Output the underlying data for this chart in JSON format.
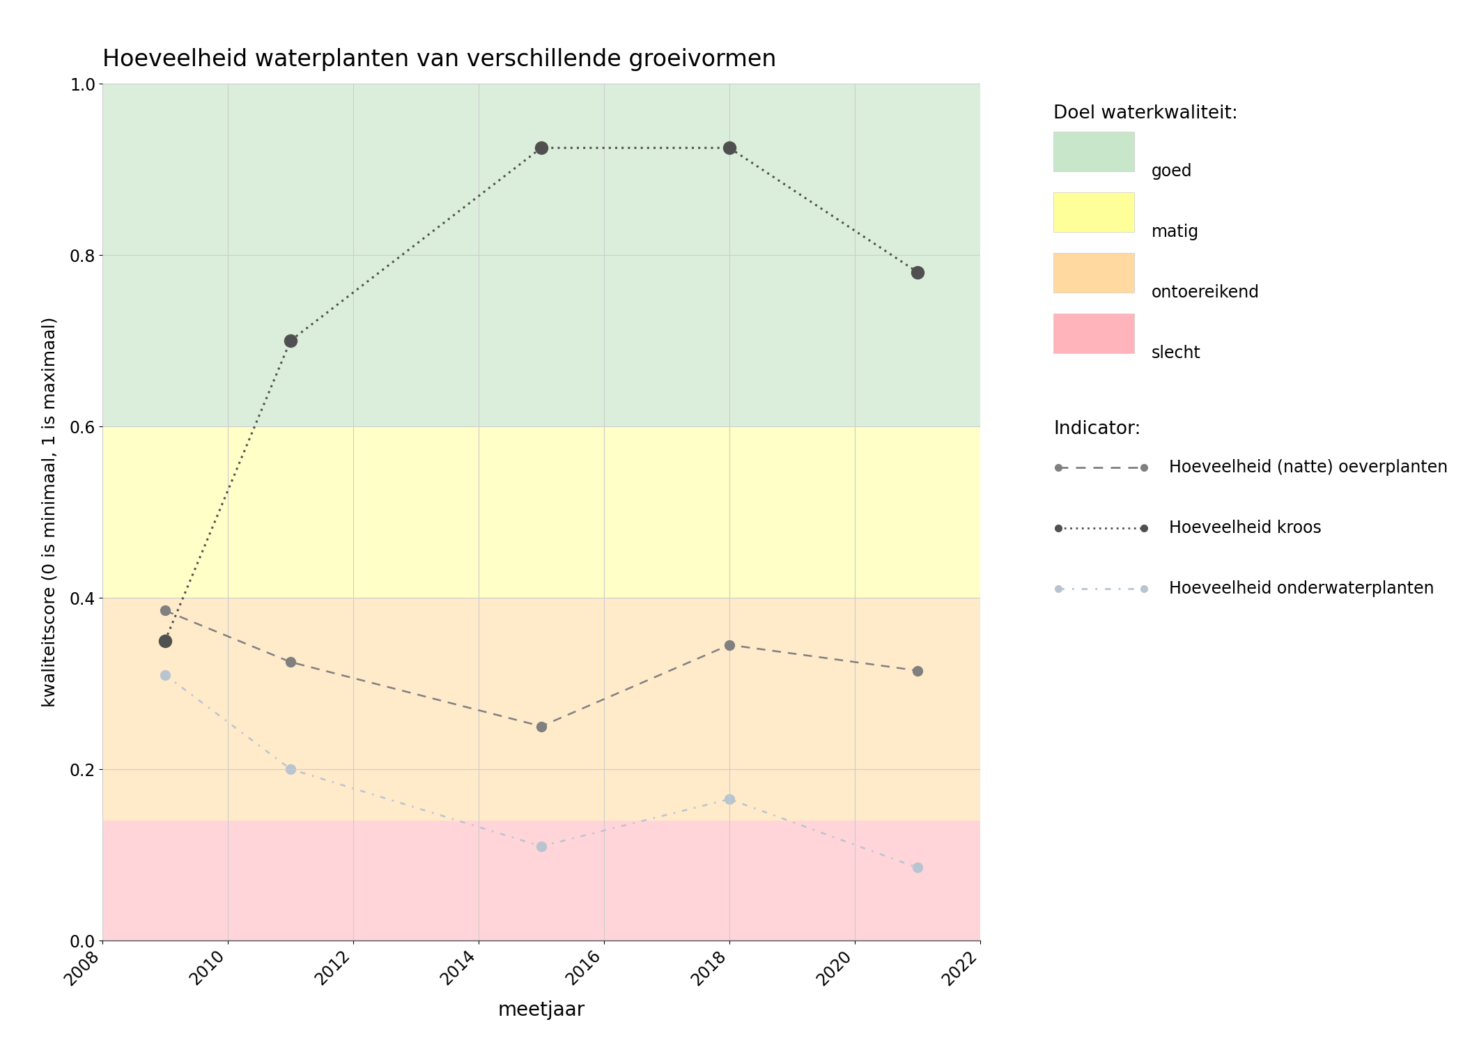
{
  "title": "Hoeveelheid waterplanten van verschillende groeivormen",
  "xlabel": "meetjaar",
  "ylabel": "kwaliteitscore (0 is minimaal, 1 is maximaal)",
  "xlim": [
    2008,
    2022
  ],
  "ylim": [
    0.0,
    1.0
  ],
  "xticks": [
    2008,
    2010,
    2012,
    2014,
    2016,
    2018,
    2020,
    2022
  ],
  "yticks": [
    0.0,
    0.2,
    0.4,
    0.6,
    0.8,
    1.0
  ],
  "bg_color": "#ffffff",
  "background_bands": [
    {
      "ymin": 0.0,
      "ymax": 0.14,
      "color": "#ffb3ba",
      "alpha": 0.55,
      "label": "slecht"
    },
    {
      "ymin": 0.14,
      "ymax": 0.4,
      "color": "#ffd9a0",
      "alpha": 0.55,
      "label": "ontoereikend"
    },
    {
      "ymin": 0.4,
      "ymax": 0.6,
      "color": "#ffff99",
      "alpha": 0.55,
      "label": "matig"
    },
    {
      "ymin": 0.6,
      "ymax": 1.0,
      "color": "#c8e6c9",
      "alpha": 0.65,
      "label": "goed"
    }
  ],
  "series": [
    {
      "name": "Hoeveelheid (natte) oeverplanten",
      "years": [
        2009,
        2011,
        2015,
        2018,
        2021
      ],
      "values": [
        0.385,
        0.325,
        0.25,
        0.345,
        0.315
      ],
      "color": "#808080",
      "linestyle": "dashed",
      "linewidth": 1.8,
      "marker": "o",
      "markersize": 10,
      "marker_color": "#808080",
      "zorder": 3
    },
    {
      "name": "Hoeveelheid kroos",
      "years": [
        2009,
        2011,
        2015,
        2018,
        2021
      ],
      "values": [
        0.35,
        0.7,
        0.925,
        0.925,
        0.78
      ],
      "color": "#505050",
      "linestyle": "dotted",
      "linewidth": 2.2,
      "marker": "o",
      "markersize": 13,
      "marker_color": "#505050",
      "zorder": 4
    },
    {
      "name": "Hoeveelheid onderwaterplanten",
      "years": [
        2009,
        2011,
        2015,
        2018,
        2021
      ],
      "values": [
        0.31,
        0.2,
        0.11,
        0.165,
        0.085
      ],
      "color": "#b8c4d0",
      "linestyle": "dashdot",
      "linewidth": 1.8,
      "marker": "o",
      "markersize": 10,
      "marker_color": "#b8c4d0",
      "zorder": 2
    }
  ],
  "legend_title_doel": "Doel waterkwaliteit:",
  "legend_title_indicator": "Indicator:",
  "legend_doel": [
    {
      "label": "goed",
      "color": "#c8e6c9"
    },
    {
      "label": "matig",
      "color": "#ffff99"
    },
    {
      "label": "ontoereikend",
      "color": "#ffd9a0"
    },
    {
      "label": "slecht",
      "color": "#ffb3ba"
    }
  ],
  "grid_color": "#cccccc",
  "grid_linewidth": 0.8
}
